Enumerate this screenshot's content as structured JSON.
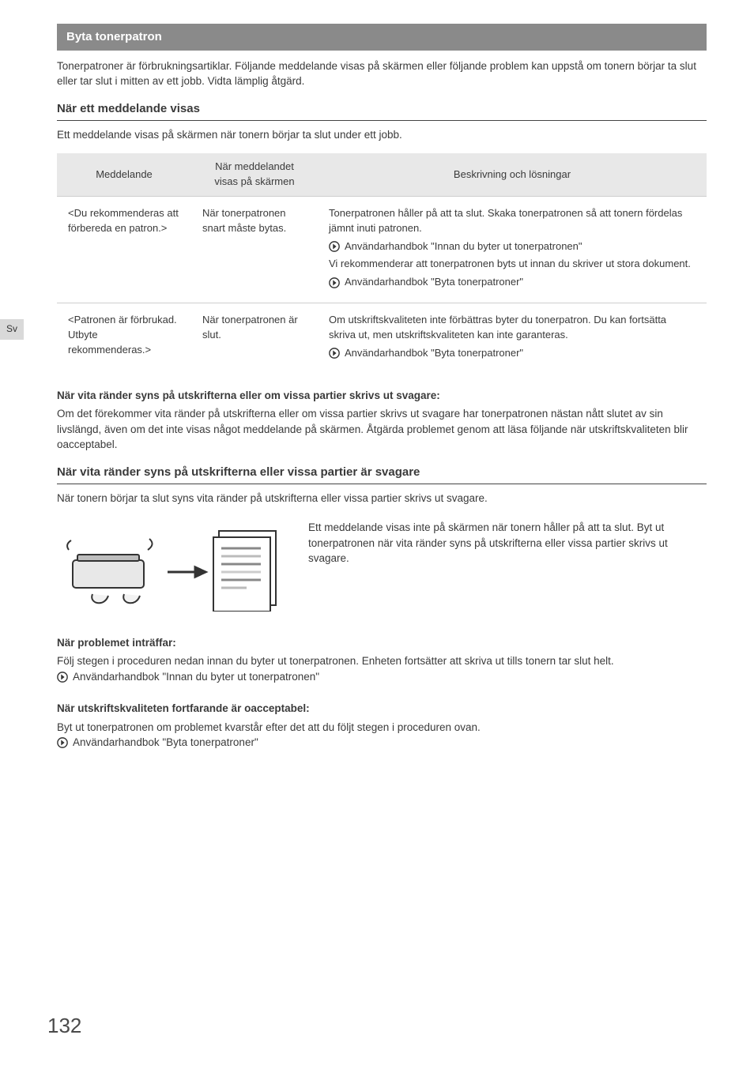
{
  "language_tab": "Sv",
  "section_title": "Byta tonerpatron",
  "intro": "Tonerpatroner är förbrukningsartiklar. Följande meddelande visas på skärmen eller följande problem kan uppstå om tonern börjar ta slut eller tar slut i mitten av ett jobb. Vidta lämplig åtgärd.",
  "sub1": {
    "title": "När ett meddelande visas",
    "lead": "Ett meddelande visas på skärmen när tonern börjar ta slut under ett jobb."
  },
  "table": {
    "headers": {
      "c1": "Meddelande",
      "c2": "När meddelandet visas på skärmen",
      "c3": "Beskrivning och lösningar"
    },
    "rows": [
      {
        "c1": "<Du rekommenderas att förbereda en patron.>",
        "c2": "När tonerpatronen snart måste bytas.",
        "c3": [
          {
            "type": "text",
            "val": "Tonerpatronen håller på att ta slut. Skaka tonerpatronen så att tonern fördelas jämnt inuti patronen."
          },
          {
            "type": "ref",
            "val": "Användarhandbok \"Innan du byter ut tonerpatronen\""
          },
          {
            "type": "text",
            "val": "Vi rekommenderar att tonerpatronen byts ut innan du skriver ut stora dokument."
          },
          {
            "type": "ref",
            "val": "Användarhandbok \"Byta tonerpatroner\""
          }
        ]
      },
      {
        "c1": "<Patronen är förbrukad. Utbyte rekommenderas.>",
        "c2": "När tonerpatronen är slut.",
        "c3": [
          {
            "type": "text",
            "val": "Om utskriftskvaliteten inte förbättras byter du tonerpatron. Du kan fortsätta skriva ut, men utskriftskvaliteten kan inte garanteras."
          },
          {
            "type": "ref",
            "val": "Användarhandbok \"Byta tonerpatroner\""
          }
        ]
      }
    ]
  },
  "streaks_note": {
    "title": "När vita ränder syns på utskrifterna eller om vissa partier skrivs ut svagare:",
    "body": "Om det förekommer vita ränder på utskrifterna eller om vissa partier skrivs ut svagare har tonerpatronen nästan nått slutet av sin livslängd, även om det inte visas något meddelande på skärmen. Åtgärda problemet genom att läsa följande när utskriftskvaliteten blir oacceptabel."
  },
  "sub2": {
    "title": "När vita ränder syns på utskrifterna eller vissa partier är svagare",
    "lead": "När tonern börjar ta slut syns vita ränder på utskrifterna eller vissa partier skrivs ut svagare.",
    "caption": "Ett meddelande visas inte på skärmen när tonern håller på att ta slut. Byt ut tonerpatronen när vita ränder syns på utskrifterna eller vissa partier skrivs ut svagare."
  },
  "problem": {
    "title": "När problemet inträffar:",
    "body": "Följ stegen i proceduren nedan innan du byter ut tonerpatronen. Enheten fortsätter att skriva ut tills tonern tar slut helt.",
    "ref": "Användarhandbok \"Innan du byter ut tonerpatronen\""
  },
  "quality": {
    "title": "När utskriftskvaliteten fortfarande är oacceptabel:",
    "body": "Byt ut tonerpatronen om problemet kvarstår efter det att du följt stegen i proceduren ovan.",
    "ref": "Användarhandbok \"Byta tonerpatroner\""
  },
  "page_number": "132",
  "colors": {
    "bar_bg": "#8a8a8a",
    "th_bg": "#e8e8e8",
    "border": "#cfcfcf",
    "text": "#3a3a3a"
  }
}
